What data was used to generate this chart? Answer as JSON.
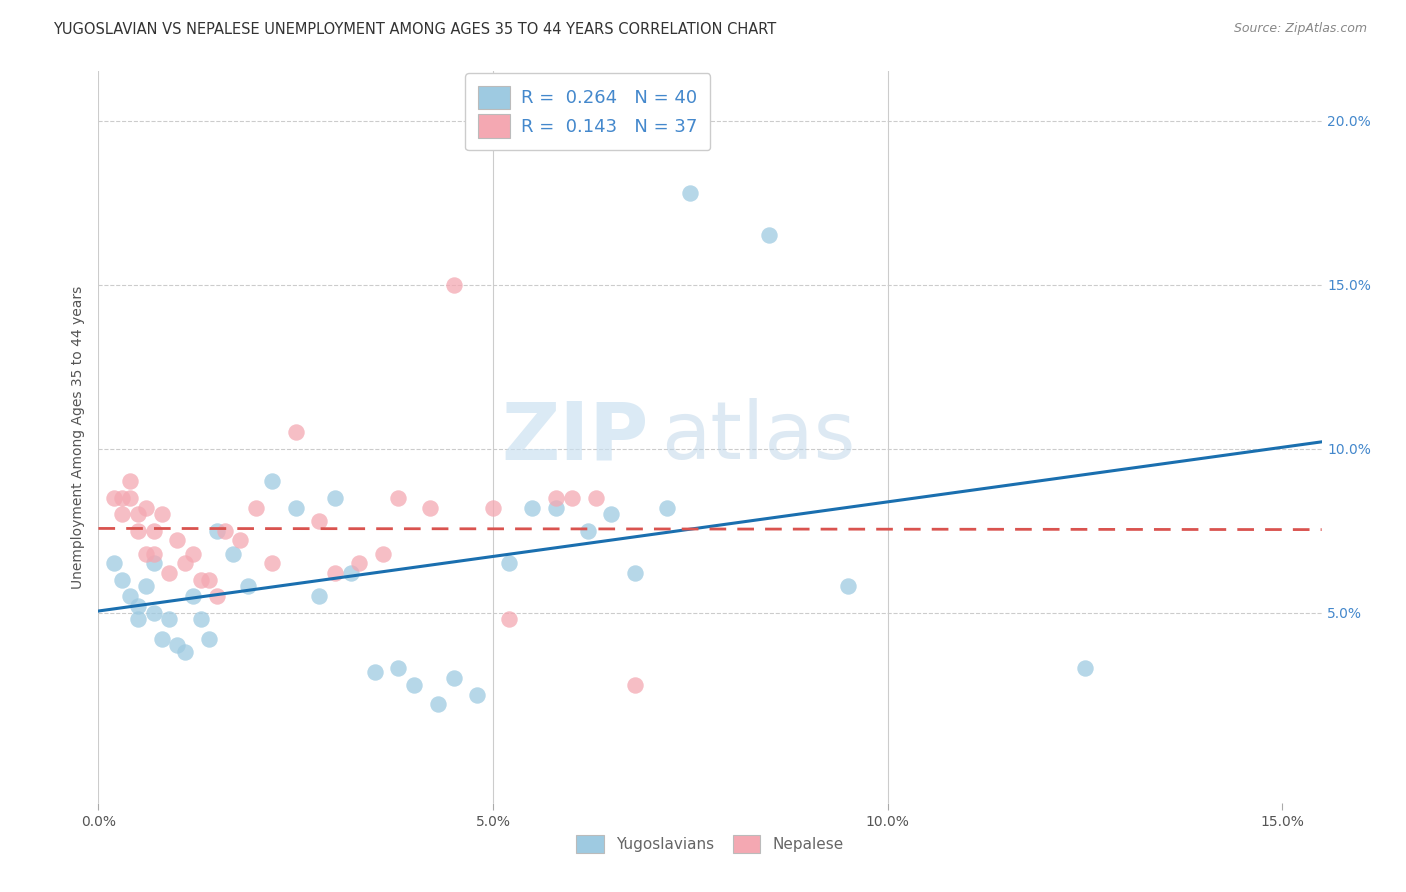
{
  "title": "YUGOSLAVIAN VS NEPALESE UNEMPLOYMENT AMONG AGES 35 TO 44 YEARS CORRELATION CHART",
  "source": "Source: ZipAtlas.com",
  "ylabel": "Unemployment Among Ages 35 to 44 years",
  "legend_labels": [
    "Yugoslavians",
    "Nepalese"
  ],
  "r_yugo": 0.264,
  "n_yugo": 40,
  "r_nepal": 0.143,
  "n_nepal": 37,
  "xlim": [
    0.0,
    0.155
  ],
  "ylim": [
    -0.008,
    0.215
  ],
  "color_yugo": "#9ecae1",
  "color_nepal": "#f4a8b2",
  "line_color_yugo": "#1a6faf",
  "line_color_nepal": "#d9534f",
  "yugo_x": [
    0.002,
    0.003,
    0.004,
    0.005,
    0.005,
    0.006,
    0.007,
    0.007,
    0.008,
    0.009,
    0.01,
    0.011,
    0.012,
    0.013,
    0.014,
    0.015,
    0.017,
    0.019,
    0.022,
    0.025,
    0.028,
    0.03,
    0.032,
    0.035,
    0.038,
    0.04,
    0.043,
    0.045,
    0.048,
    0.052,
    0.055,
    0.058,
    0.062,
    0.065,
    0.068,
    0.072,
    0.075,
    0.085,
    0.095,
    0.125
  ],
  "yugo_y": [
    0.065,
    0.06,
    0.055,
    0.052,
    0.048,
    0.058,
    0.065,
    0.05,
    0.042,
    0.048,
    0.04,
    0.038,
    0.055,
    0.048,
    0.042,
    0.075,
    0.068,
    0.058,
    0.09,
    0.082,
    0.055,
    0.085,
    0.062,
    0.032,
    0.033,
    0.028,
    0.022,
    0.03,
    0.025,
    0.065,
    0.082,
    0.082,
    0.075,
    0.08,
    0.062,
    0.082,
    0.178,
    0.165,
    0.058,
    0.033
  ],
  "nepal_x": [
    0.002,
    0.003,
    0.003,
    0.004,
    0.004,
    0.005,
    0.005,
    0.006,
    0.006,
    0.007,
    0.007,
    0.008,
    0.009,
    0.01,
    0.011,
    0.012,
    0.013,
    0.014,
    0.015,
    0.016,
    0.018,
    0.02,
    0.022,
    0.025,
    0.028,
    0.03,
    0.033,
    0.036,
    0.038,
    0.042,
    0.045,
    0.05,
    0.052,
    0.058,
    0.06,
    0.063,
    0.068
  ],
  "nepal_y": [
    0.085,
    0.085,
    0.08,
    0.085,
    0.09,
    0.08,
    0.075,
    0.082,
    0.068,
    0.075,
    0.068,
    0.08,
    0.062,
    0.072,
    0.065,
    0.068,
    0.06,
    0.06,
    0.055,
    0.075,
    0.072,
    0.082,
    0.065,
    0.105,
    0.078,
    0.062,
    0.065,
    0.068,
    0.085,
    0.082,
    0.15,
    0.082,
    0.048,
    0.085,
    0.085,
    0.085,
    0.028
  ],
  "watermark_zip": "ZIP",
  "watermark_atlas": "atlas",
  "title_fontsize": 10.5,
  "tick_fontsize": 10,
  "ylabel_fontsize": 10
}
